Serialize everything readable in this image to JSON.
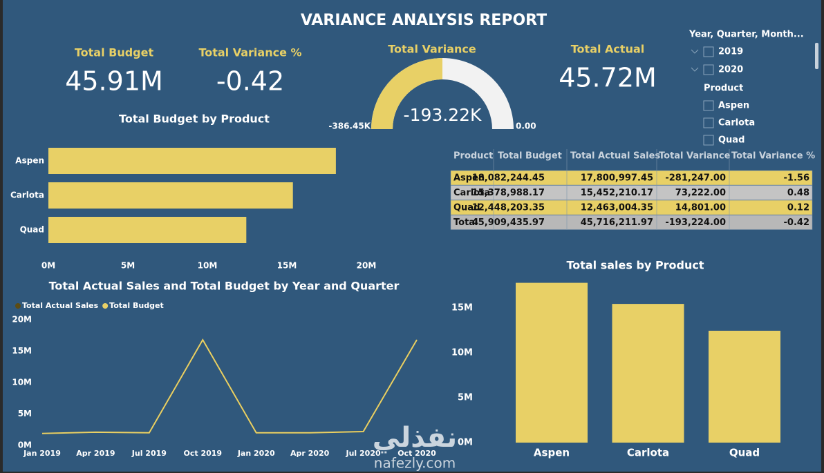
{
  "title": "VARIANCE ANALYSIS REPORT",
  "kpis": [
    {
      "label": "Total Budget",
      "value": "45.91M"
    },
    {
      "label": "Total Variance %",
      "value": "-0.42"
    },
    {
      "label": "Total Actual",
      "value": "45.72M"
    }
  ],
  "slicer": {
    "header": "Year, Quarter, Month...",
    "years": [
      "2019",
      "2020"
    ],
    "product_header": "Product",
    "products": [
      "Aspen",
      "Carlota",
      "Quad"
    ]
  },
  "table": {
    "header": [
      "Product",
      "Total Budget",
      "Total Actual Sales",
      "Total Variance",
      "Total Variance %"
    ],
    "rows": [
      [
        "Aspen",
        "18,082,244.45",
        "17,800,997.45",
        "-281,247.00",
        "-1.56"
      ],
      [
        "Carlota",
        "15,378,988.17",
        "15,452,210.17",
        "73,222.00",
        "0.48"
      ],
      [
        "Quad",
        "12,448,203.35",
        "12,463,004.35",
        "14,801.00",
        "0.12"
      ],
      [
        "Total",
        "45,909,435.97",
        "45,716,211.97",
        "-193,224.00",
        "-0.42"
      ]
    ]
  },
  "watermark": [
    "نفذلي",
    "nafezly.com"
  ],
  "chart_data": [
    {
      "type": "gauge",
      "title": "Total Variance",
      "value": -193220,
      "value_label": "-193.22K",
      "min": {
        "value": -386450,
        "label": "-386.45K"
      },
      "max": {
        "value": 0,
        "label": "0.00"
      },
      "color": "#e8d066",
      "track_color": "#f2f2f2"
    },
    {
      "type": "hbar",
      "title": "Total Budget by Product",
      "categories": [
        "Aspen",
        "Carlota",
        "Quad"
      ],
      "values": [
        18082244.45,
        15378988.17,
        12448203.35
      ],
      "color": "#e8d066",
      "xlim": [
        0,
        20000000
      ],
      "xticks": [
        {
          "value": 0,
          "label": "0M"
        },
        {
          "value": 5000000,
          "label": "5M"
        },
        {
          "value": 10000000,
          "label": "10M"
        },
        {
          "value": 15000000,
          "label": "15M"
        },
        {
          "value": 20000000,
          "label": "20M"
        }
      ]
    },
    {
      "type": "line",
      "title": "Total Actual Sales and Total Budget by Year and Quarter",
      "categories": [
        "Jan 2019",
        "Apr 2019",
        "Jul 2019",
        "Oct 2019",
        "Jan 2020",
        "Apr 2020",
        "Jul 2020",
        "Oct 2020"
      ],
      "series": [
        {
          "name": "Total Actual Sales",
          "color": "#5c4c14",
          "values": [
            1900000,
            2100000,
            2000000,
            16800000,
            2000000,
            2000000,
            2200000,
            16800000
          ]
        },
        {
          "name": "Total Budget",
          "color": "#e8d066",
          "values": [
            1900000,
            2100000,
            2000000,
            16800000,
            2000000,
            2000000,
            2200000,
            16800000
          ]
        }
      ],
      "ylim": [
        0,
        20000000
      ],
      "yticks": [
        {
          "value": 0,
          "label": "0M"
        },
        {
          "value": 5000000,
          "label": "5M"
        },
        {
          "value": 10000000,
          "label": "10M"
        },
        {
          "value": 15000000,
          "label": "15M"
        },
        {
          "value": 20000000,
          "label": "20M"
        }
      ]
    },
    {
      "type": "bar",
      "title": "Total sales by Product",
      "categories": [
        "Aspen",
        "Carlota",
        "Quad"
      ],
      "values": [
        17800997.45,
        15452210.17,
        12463004.35
      ],
      "color": "#e8d066",
      "ylim": [
        0,
        18000000
      ],
      "yticks": [
        {
          "value": 0,
          "label": "0M"
        },
        {
          "value": 5000000,
          "label": "5M"
        },
        {
          "value": 10000000,
          "label": "10M"
        },
        {
          "value": 15000000,
          "label": "15M"
        }
      ]
    }
  ]
}
